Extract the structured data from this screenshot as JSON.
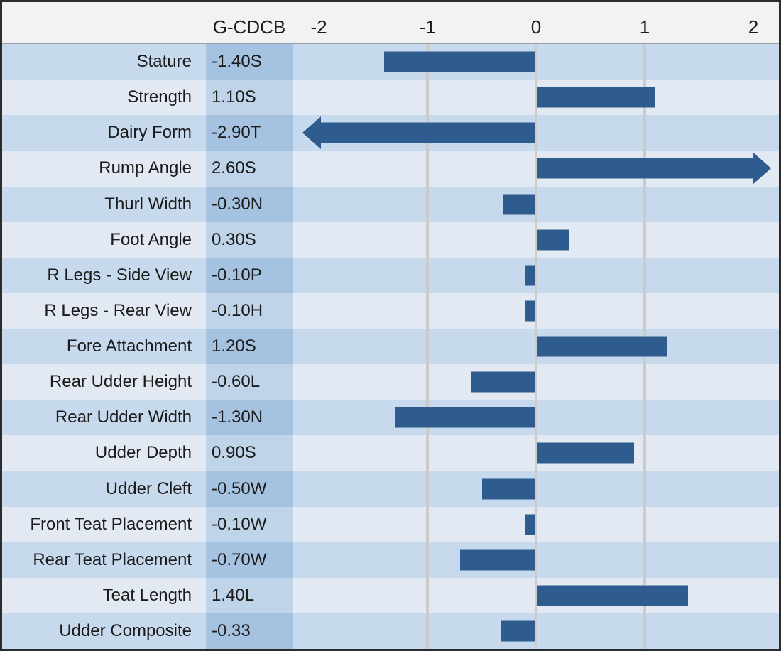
{
  "header": {
    "index_label": "G-CDCB"
  },
  "chart_data": {
    "type": "bar",
    "orientation": "horizontal",
    "index_header": "G-CDCB",
    "xlim": [
      -2.25,
      2.25
    ],
    "axis_ticks": [
      -2,
      -1,
      0,
      1,
      2
    ],
    "gridlines_at": [
      -1,
      0,
      1
    ],
    "bar_color": "#2e5c8e",
    "out_of_range_shown_as": "arrow",
    "rows": [
      {
        "trait": "Stature",
        "sta": "-1.40S",
        "value": -1.4
      },
      {
        "trait": "Strength",
        "sta": "1.10S",
        "value": 1.1
      },
      {
        "trait": "Dairy Form",
        "sta": "-2.90T",
        "value": -2.9
      },
      {
        "trait": "Rump Angle",
        "sta": "2.60S",
        "value": 2.6
      },
      {
        "trait": "Thurl Width",
        "sta": "-0.30N",
        "value": -0.3
      },
      {
        "trait": "Foot Angle",
        "sta": "0.30S",
        "value": 0.3
      },
      {
        "trait": "R Legs - Side View",
        "sta": "-0.10P",
        "value": -0.1
      },
      {
        "trait": "R Legs - Rear View",
        "sta": "-0.10H",
        "value": -0.1
      },
      {
        "trait": "Fore Attachment",
        "sta": "1.20S",
        "value": 1.2
      },
      {
        "trait": "Rear Udder Height",
        "sta": "-0.60L",
        "value": -0.6
      },
      {
        "trait": "Rear Udder Width",
        "sta": "-1.30N",
        "value": -1.3
      },
      {
        "trait": "Udder Depth",
        "sta": "0.90S",
        "value": 0.9
      },
      {
        "trait": "Udder Cleft",
        "sta": "-0.50W",
        "value": -0.5
      },
      {
        "trait": "Front Teat Placement",
        "sta": "-0.10W",
        "value": -0.1
      },
      {
        "trait": "Rear Teat Placement",
        "sta": "-0.70W",
        "value": -0.7
      },
      {
        "trait": "Teat Length",
        "sta": "1.40L",
        "value": 1.4
      },
      {
        "trait": "Udder Composite",
        "sta": "-0.33",
        "value": -0.33
      }
    ]
  },
  "colors": {
    "bar": "#2e5c8e",
    "row_odd_bg": "#c7d9ec",
    "row_odd_value_bg": "#a5c3e0",
    "row_even_bg": "#e3e9f2",
    "row_even_value_bg": "#bfd4e9",
    "header_bg": "#f2f2f2",
    "gridline": "#cccbc9",
    "border": "#2b2b2b"
  }
}
